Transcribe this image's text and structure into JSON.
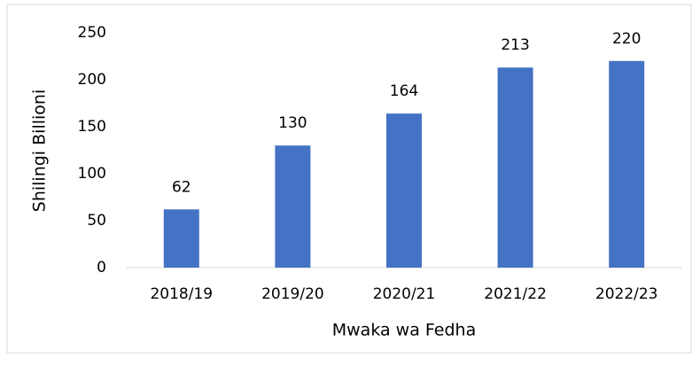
{
  "chart_data": {
    "type": "bar",
    "x_label": "Mwaka wa Fedha",
    "y_label": "Shilingi Billioni",
    "categories": [
      "2018/19",
      "2019/20",
      "2020/21",
      "2021/22",
      "2022/23"
    ],
    "values": [
      62,
      130,
      164,
      213,
      220
    ],
    "color": "#4472c4",
    "ylim": [
      0,
      250
    ],
    "yticks": [
      0,
      50,
      100,
      150,
      200,
      250
    ],
    "grid": false
  }
}
